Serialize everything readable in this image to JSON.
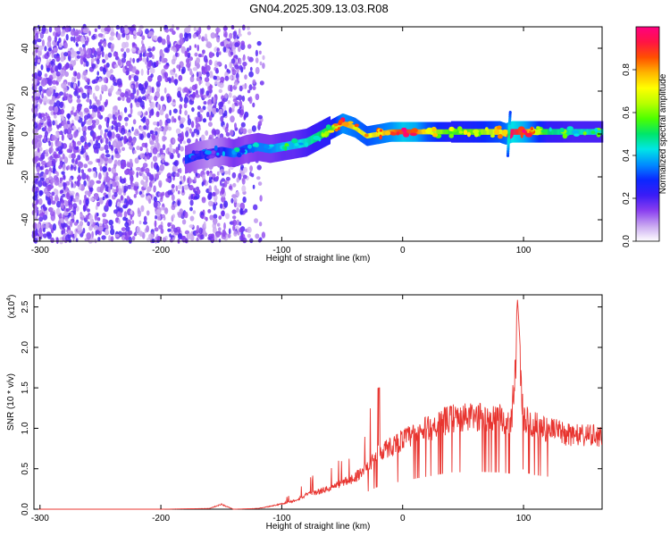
{
  "title": "GN04.2025.309.13.03.R08",
  "chart_data": [
    {
      "type": "heatmap",
      "xlabel": "Height of straight line (km)",
      "ylabel": "Frequency (Hz)",
      "xlim": [
        -305,
        165
      ],
      "ylim": [
        -50,
        50
      ],
      "x_ticks": [
        -300,
        -200,
        -100,
        0,
        100
      ],
      "y_ticks": [
        -40,
        -20,
        0,
        20,
        40
      ],
      "colorbar": {
        "label": "Normalized spectral amplitude",
        "range": [
          0,
          1
        ],
        "ticks": [
          0.0,
          0.2,
          0.4,
          0.6,
          0.8
        ],
        "tick_labels": [
          "0.0",
          "0.2",
          "0.4",
          "0.6",
          "0.8"
        ],
        "colors": [
          "#ffffff",
          "#c9a8f0",
          "#8a3ff0",
          "#3b1cf6",
          "#0b28ff",
          "#008cff",
          "#00e6e6",
          "#00e66b",
          "#4cff00",
          "#b8ff00",
          "#ffff00",
          "#ffb400",
          "#ff5000",
          "#ff1444",
          "#ff0080"
        ]
      },
      "ridge": {
        "x": [
          -180,
          -170,
          -160,
          -150,
          -140,
          -130,
          -120,
          -110,
          -100,
          -90,
          -80,
          -70,
          -60,
          -50,
          -40,
          -30,
          -20,
          -10,
          0,
          10,
          20,
          40,
          60,
          80,
          85,
          90,
          100,
          120,
          140,
          165
        ],
        "freq": [
          -12,
          -10,
          -9,
          -8,
          -9,
          -7,
          -6,
          -7,
          -6,
          -5,
          -4,
          -1,
          2,
          5,
          3,
          -1,
          0,
          1,
          1,
          1,
          1,
          1,
          1,
          1,
          0,
          1,
          1,
          1,
          1,
          1
        ],
        "amplitude": [
          0.3,
          0.25,
          0.2,
          0.25,
          0.35,
          0.3,
          0.35,
          0.35,
          0.4,
          0.4,
          0.45,
          0.5,
          0.55,
          0.8,
          0.75,
          0.7,
          0.75,
          0.8,
          0.9,
          0.85,
          0.7,
          0.55,
          0.6,
          0.7,
          0.75,
          0.95,
          0.85,
          0.5,
          0.45,
          0.45
        ]
      }
    },
    {
      "type": "line",
      "xlabel": "Height of straight line (km)",
      "ylabel": "SNR (10 * v/v)",
      "y_multiplier": "(x10",
      "y_multiplier_exp": "4",
      "xlim": [
        -305,
        165
      ],
      "ylim": [
        0,
        2.65
      ],
      "x_ticks": [
        -300,
        -200,
        -100,
        0,
        100
      ],
      "y_ticks": [
        0.0,
        0.5,
        1.0,
        1.5,
        2.0,
        2.5
      ],
      "y_tick_labels": [
        "0.0",
        "0.5",
        "1.0",
        "1.5",
        "2.0",
        "2.5"
      ],
      "color": "#e8342f",
      "envelope": {
        "x": [
          -305,
          -200,
          -160,
          -150,
          -140,
          -120,
          -110,
          -100,
          -90,
          -80,
          -70,
          -60,
          -50,
          -40,
          -30,
          -20,
          -10,
          0,
          20,
          40,
          60,
          80,
          90,
          95,
          100,
          110,
          130,
          150,
          165
        ],
        "y": [
          0.0,
          0.0,
          0.01,
          0.07,
          0.0,
          0.01,
          0.04,
          0.08,
          0.12,
          0.2,
          0.25,
          0.3,
          0.38,
          0.45,
          0.6,
          0.8,
          0.9,
          1.0,
          1.15,
          1.3,
          1.32,
          1.3,
          1.25,
          2.6,
          1.3,
          1.2,
          1.1,
          1.05,
          1.05
        ]
      }
    }
  ]
}
